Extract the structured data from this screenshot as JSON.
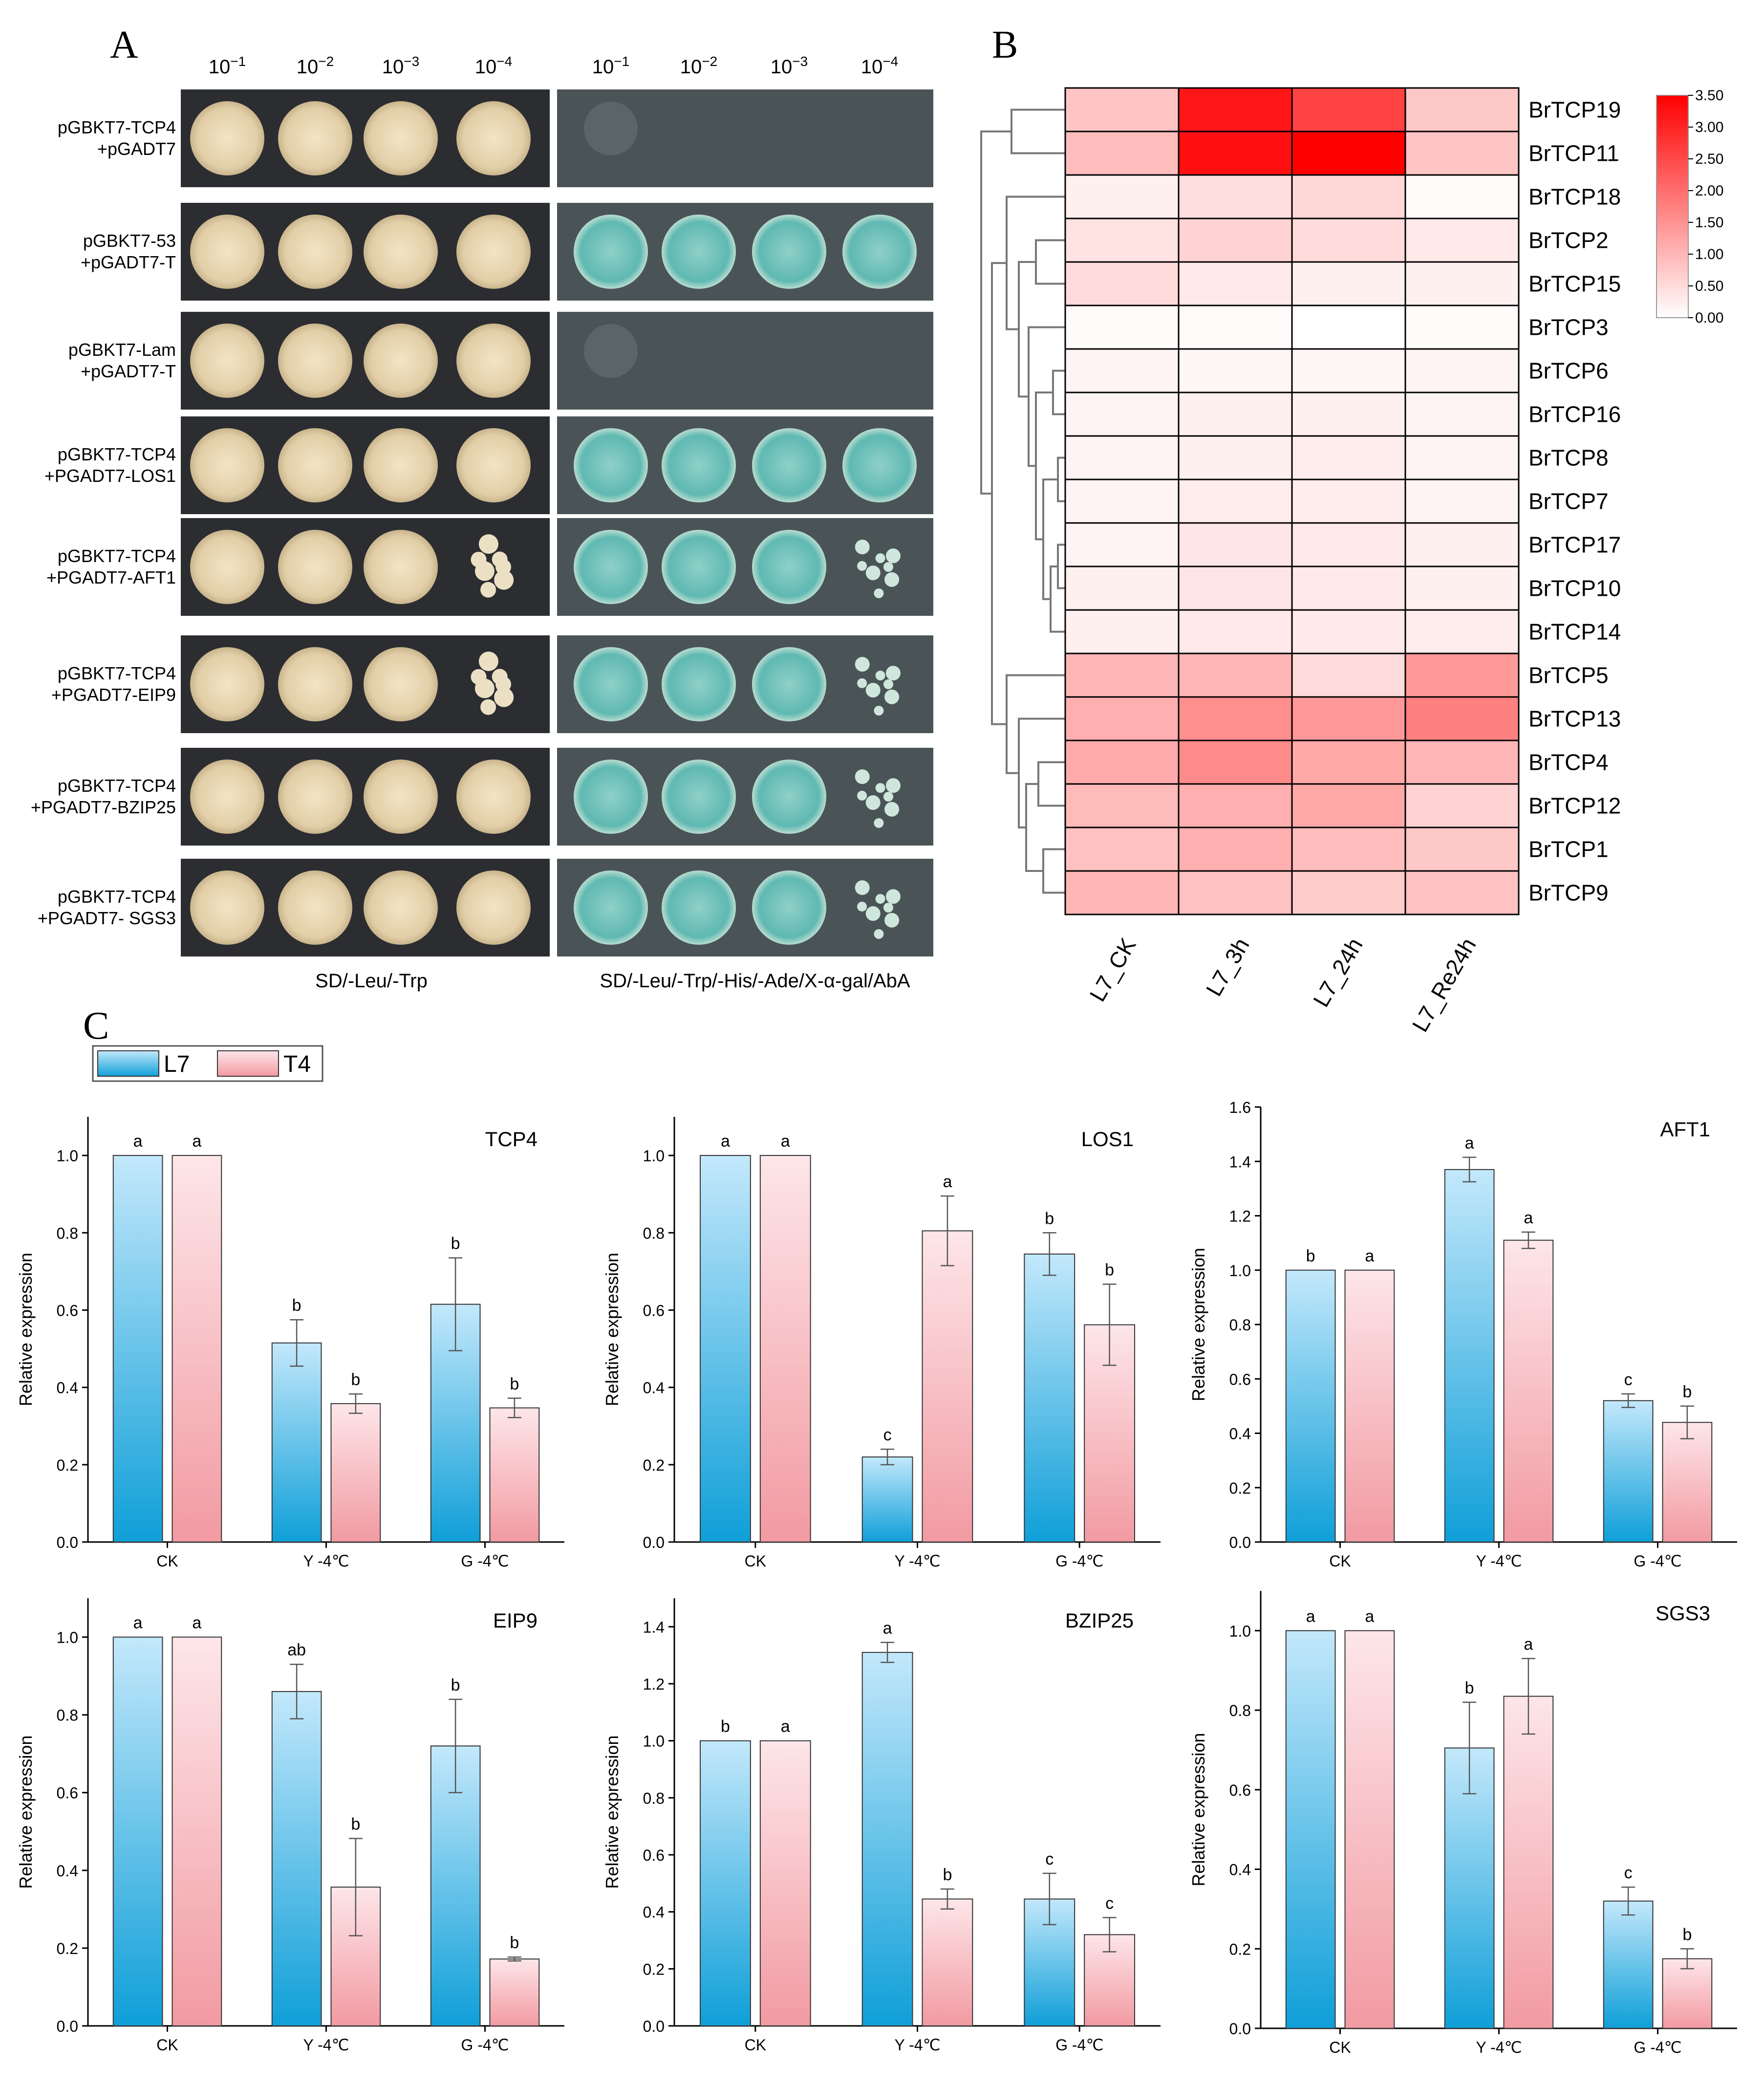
{
  "panel_letters": {
    "a": "A",
    "b": "B",
    "c": "C"
  },
  "panelA": {
    "dilutions_left": [
      "10−1",
      "10−2",
      "10−3",
      "10−4"
    ],
    "dilutions_right": [
      "10−1",
      "10−2",
      "10−3",
      "10−4"
    ],
    "rows": [
      {
        "line1": "pGBKT7-TCP4",
        "line2": "+pGADT7",
        "left_growth": [
          1,
          1,
          1,
          1
        ],
        "right_growth": [
          0.15,
          0,
          0,
          0
        ]
      },
      {
        "line1": "pGBKT7-53",
        "line2": "+pGADT7-T",
        "left_growth": [
          1,
          1,
          1,
          1
        ],
        "right_growth": [
          1,
          1,
          1,
          1
        ]
      },
      {
        "line1": "pGBKT7-Lam",
        "line2": "+pGADT7-T",
        "left_growth": [
          1,
          1,
          1,
          1
        ],
        "right_growth": [
          0.15,
          0,
          0,
          0
        ]
      },
      {
        "line1": "pGBKT7-TCP4",
        "line2": "+PGADT7-LOS1",
        "left_growth": [
          1,
          1,
          1,
          1
        ],
        "right_growth": [
          1,
          1,
          1,
          1
        ]
      },
      {
        "line1": "pGBKT7-TCP4",
        "line2": "+PGADT7-AFT1",
        "left_growth": [
          1,
          1,
          1,
          0.7
        ],
        "right_growth": [
          1,
          1,
          1,
          0.6
        ]
      },
      {
        "line1": "pGBKT7-TCP4",
        "line2": "+PGADT7-EIP9",
        "left_growth": [
          1,
          1,
          1,
          0.8
        ],
        "right_growth": [
          1,
          1,
          1,
          0.7
        ]
      },
      {
        "line1": "pGBKT7-TCP4",
        "line2": "+PGADT7-BZIP25",
        "left_growth": [
          1,
          1,
          1,
          1
        ],
        "right_growth": [
          1,
          1,
          1,
          0.7
        ]
      },
      {
        "line1": "pGBKT7-TCP4",
        "line2": "+PGADT7- SGS3",
        "left_growth": [
          1,
          1,
          1,
          1
        ],
        "right_growth": [
          1,
          1,
          1,
          0.7
        ]
      }
    ],
    "caption_left": "SD/-Leu/-Trp",
    "caption_right": "SD/-Leu/-Trp/-His/-Ade/X-α-gal/AbA"
  },
  "chart_data": [
    {
      "type": "heatmap",
      "columns": [
        "L7_CK",
        "L7_3h",
        "L7_24h",
        "L7_Re24h"
      ],
      "rows": [
        "BrTCP19",
        "BrTCP11",
        "BrTCP18",
        "BrTCP2",
        "BrTCP15",
        "BrTCP3",
        "BrTCP6",
        "BrTCP16",
        "BrTCP8",
        "BrTCP7",
        "BrTCP17",
        "BrTCP10",
        "BrTCP14",
        "BrTCP5",
        "BrTCP13",
        "BrTCP4",
        "BrTCP12",
        "BrTCP1",
        "BrTCP9"
      ],
      "values": [
        [
          0.8,
          3.2,
          2.6,
          0.75
        ],
        [
          0.9,
          3.3,
          3.5,
          0.8
        ],
        [
          0.2,
          0.45,
          0.55,
          0.05
        ],
        [
          0.4,
          0.6,
          0.5,
          0.3
        ],
        [
          0.5,
          0.3,
          0.2,
          0.2
        ],
        [
          0.05,
          0.05,
          0.02,
          0.05
        ],
        [
          0.15,
          0.12,
          0.12,
          0.15
        ],
        [
          0.15,
          0.2,
          0.2,
          0.15
        ],
        [
          0.15,
          0.2,
          0.25,
          0.15
        ],
        [
          0.15,
          0.25,
          0.25,
          0.15
        ],
        [
          0.15,
          0.35,
          0.3,
          0.2
        ],
        [
          0.2,
          0.35,
          0.3,
          0.2
        ],
        [
          0.2,
          0.3,
          0.3,
          0.25
        ],
        [
          1.0,
          1.0,
          0.5,
          1.4
        ],
        [
          1.1,
          1.55,
          1.4,
          1.75
        ],
        [
          1.15,
          1.6,
          1.2,
          1.0
        ],
        [
          0.95,
          1.1,
          1.2,
          0.6
        ],
        [
          0.85,
          1.1,
          0.9,
          0.75
        ],
        [
          1.0,
          0.85,
          0.7,
          0.85
        ]
      ],
      "colorbar": {
        "min": 0.0,
        "max": 3.5,
        "ticks": [
          "3.50",
          "3.00",
          "2.50",
          "2.00",
          "1.50",
          "1.00",
          "0.50",
          "0.00"
        ]
      },
      "colors": {
        "low": "#ffffff",
        "high": "#ff0000"
      }
    },
    {
      "type": "bar",
      "title": "TCP4",
      "ylabel": "Relative expression",
      "categories": [
        "CK",
        "Y -4℃",
        "G -4℃"
      ],
      "ylim": [
        0,
        1.1
      ],
      "yticks": [
        "0.0",
        "0.2",
        "0.4",
        "0.6",
        "0.8",
        "1.0"
      ],
      "series": [
        {
          "name": "L7",
          "values": [
            1.0,
            0.515,
            0.615
          ],
          "errors": [
            0,
            0.06,
            0.12
          ],
          "letters": [
            "a",
            "b",
            "b"
          ]
        },
        {
          "name": "T4",
          "values": [
            1.0,
            0.358,
            0.347
          ],
          "errors": [
            0,
            0.025,
            0.025
          ],
          "letters": [
            "a",
            "b",
            "b"
          ]
        }
      ]
    },
    {
      "type": "bar",
      "title": "LOS1",
      "ylabel": "Relative expression",
      "categories": [
        "CK",
        "Y -4℃",
        "G -4℃"
      ],
      "ylim": [
        0,
        1.1
      ],
      "yticks": [
        "0.0",
        "0.2",
        "0.4",
        "0.6",
        "0.8",
        "1.0"
      ],
      "series": [
        {
          "name": "L7",
          "values": [
            1.0,
            0.22,
            0.745
          ],
          "errors": [
            0,
            0.02,
            0.055
          ],
          "letters": [
            "a",
            "c",
            "b"
          ]
        },
        {
          "name": "T4",
          "values": [
            1.0,
            0.805,
            0.562
          ],
          "errors": [
            0,
            0.09,
            0.105
          ],
          "letters": [
            "a",
            "a",
            "b"
          ]
        }
      ]
    },
    {
      "type": "bar",
      "title": "AFT1",
      "ylabel": "Relative expression",
      "categories": [
        "CK",
        "Y -4℃",
        "G -4℃"
      ],
      "ylim": [
        0,
        1.6
      ],
      "yticks": [
        "0.0",
        "0.2",
        "0.4",
        "0.6",
        "0.8",
        "1.0",
        "1.2",
        "1.4",
        "1.6"
      ],
      "series": [
        {
          "name": "L7",
          "values": [
            1.0,
            1.37,
            0.52
          ],
          "errors": [
            0,
            0.045,
            0.025
          ],
          "letters": [
            "b",
            "a",
            "c"
          ]
        },
        {
          "name": "T4",
          "values": [
            1.0,
            1.11,
            0.44
          ],
          "errors": [
            0,
            0.03,
            0.06
          ],
          "letters": [
            "a",
            "a",
            "b"
          ]
        }
      ]
    },
    {
      "type": "bar",
      "title": "EIP9",
      "ylabel": "Relative expression",
      "categories": [
        "CK",
        "Y -4℃",
        "G -4℃"
      ],
      "ylim": [
        0,
        1.1
      ],
      "yticks": [
        "0.0",
        "0.2",
        "0.4",
        "0.6",
        "0.8",
        "1.0"
      ],
      "series": [
        {
          "name": "L7",
          "values": [
            1.0,
            0.86,
            0.72
          ],
          "errors": [
            0,
            0.07,
            0.12
          ],
          "letters": [
            "a",
            "ab",
            "b"
          ]
        },
        {
          "name": "T4",
          "values": [
            1.0,
            0.357,
            0.172
          ],
          "errors": [
            0,
            0.125,
            0.005
          ],
          "letters": [
            "a",
            "b",
            "b"
          ]
        }
      ]
    },
    {
      "type": "bar",
      "title": "BZIP25",
      "ylabel": "Relative expression",
      "categories": [
        "CK",
        "Y -4℃",
        "G -4℃"
      ],
      "ylim": [
        0,
        1.5
      ],
      "yticks": [
        "0.0",
        "0.2",
        "0.4",
        "0.6",
        "0.8",
        "1.0",
        "1.2",
        "1.4"
      ],
      "series": [
        {
          "name": "L7",
          "values": [
            1.0,
            1.31,
            0.445
          ],
          "errors": [
            0,
            0.035,
            0.09
          ],
          "letters": [
            "b",
            "a",
            "c"
          ]
        },
        {
          "name": "T4",
          "values": [
            1.0,
            0.445,
            0.32
          ],
          "errors": [
            0,
            0.035,
            0.06
          ],
          "letters": [
            "a",
            "b",
            "c"
          ]
        }
      ]
    },
    {
      "type": "bar",
      "title": "SGS3",
      "ylabel": "Relative expression",
      "categories": [
        "CK",
        "Y -4℃",
        "G -4℃"
      ],
      "ylim": [
        0,
        1.1
      ],
      "yticks": [
        "0.0",
        "0.2",
        "0.4",
        "0.6",
        "0.8",
        "1.0"
      ],
      "series": [
        {
          "name": "L7",
          "values": [
            1.0,
            0.705,
            0.32
          ],
          "errors": [
            0,
            0.115,
            0.035
          ],
          "letters": [
            "a",
            "b",
            "c"
          ]
        },
        {
          "name": "T4",
          "values": [
            1.0,
            0.835,
            0.175
          ],
          "errors": [
            0,
            0.095,
            0.025
          ],
          "letters": [
            "a",
            "a",
            "b"
          ]
        }
      ]
    }
  ],
  "legend": {
    "items": [
      "L7",
      "T4"
    ]
  },
  "colors": {
    "l7_top": "#bfe7fa",
    "l7_bottom": "#11a3da",
    "t4_top": "#fde3e6",
    "t4_bottom": "#f4a1a8",
    "plate_bg": "#2a2c30",
    "plate_bg_right": "#4b5557"
  }
}
